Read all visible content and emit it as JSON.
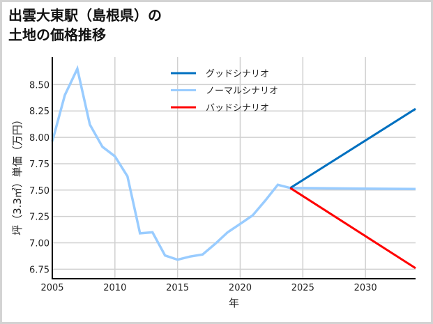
{
  "title_line1": "出雲大東駅（島根県）の",
  "title_line2": "土地の価格推移",
  "chart_data": {
    "type": "line",
    "title": "出雲大東駅（島根県）の土地の価格推移",
    "xlabel": "年",
    "ylabel": "坪（3.3㎡）単価（万円）",
    "xlim": [
      2005,
      2034
    ],
    "ylim": [
      6.66,
      8.76
    ],
    "xticks": [
      2005,
      2010,
      2015,
      2020,
      2025,
      2030
    ],
    "xtick_labels": [
      "2005",
      "2010",
      "2015",
      "2020",
      "2025",
      "2030"
    ],
    "yticks": [
      6.75,
      7.0,
      7.25,
      7.5,
      7.75,
      8.0,
      8.25,
      8.5
    ],
    "ytick_labels": [
      "6.75",
      "7.00",
      "7.25",
      "7.50",
      "7.75",
      "8.00",
      "8.25",
      "8.50"
    ],
    "grid": true,
    "legend_position": "upper center",
    "series": [
      {
        "name": "グッドシナリオ",
        "color": "#0070c0",
        "x": [
          2024,
          2034
        ],
        "values": [
          7.52,
          8.27
        ]
      },
      {
        "name": "ノーマルシナリオ",
        "color": "#99ccff",
        "x": [
          2005,
          2006,
          2007,
          2008,
          2009,
          2010,
          2011,
          2012,
          2013,
          2014,
          2015,
          2016,
          2017,
          2018,
          2019,
          2020,
          2021,
          2022,
          2023,
          2024,
          2034
        ],
        "values": [
          7.96,
          8.4,
          8.65,
          8.12,
          7.91,
          7.82,
          7.63,
          7.09,
          7.1,
          6.88,
          6.84,
          6.87,
          6.89,
          6.99,
          7.1,
          7.18,
          7.26,
          7.4,
          7.55,
          7.52,
          7.51
        ]
      },
      {
        "name": "バッドシナリオ",
        "color": "#ff0000",
        "x": [
          2024,
          2034
        ],
        "values": [
          7.52,
          6.76
        ]
      }
    ]
  }
}
